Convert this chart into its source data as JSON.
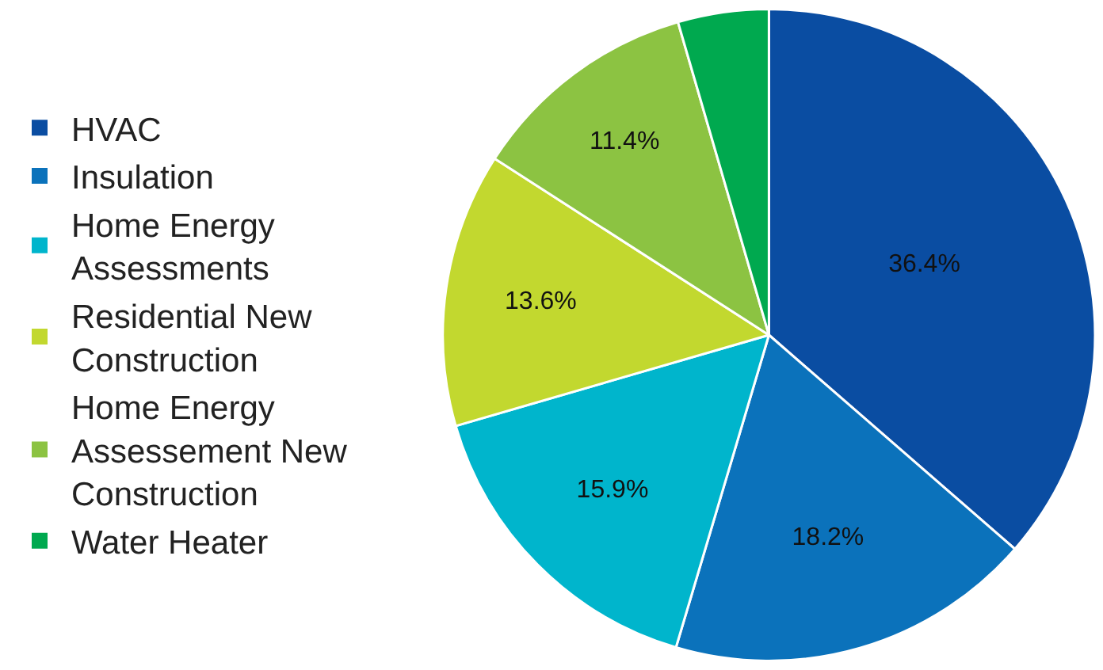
{
  "chart_data": {
    "type": "pie",
    "categories": [
      "HVAC",
      "Insulation",
      "Home Energy Assessments",
      "Residential New Construction",
      "Home Energy Assessement New Construction",
      "Water Heater"
    ],
    "values": [
      36.4,
      18.2,
      15.9,
      13.6,
      11.4,
      4.5
    ],
    "value_labels": [
      "36.4%",
      "18.2%",
      "15.9%",
      "13.6%",
      "11.4%",
      null
    ],
    "colors": [
      "#0a4da2",
      "#0b72bb",
      "#00b5cc",
      "#c2d82f",
      "#8cc342",
      "#00a94f"
    ],
    "legend": "left"
  }
}
